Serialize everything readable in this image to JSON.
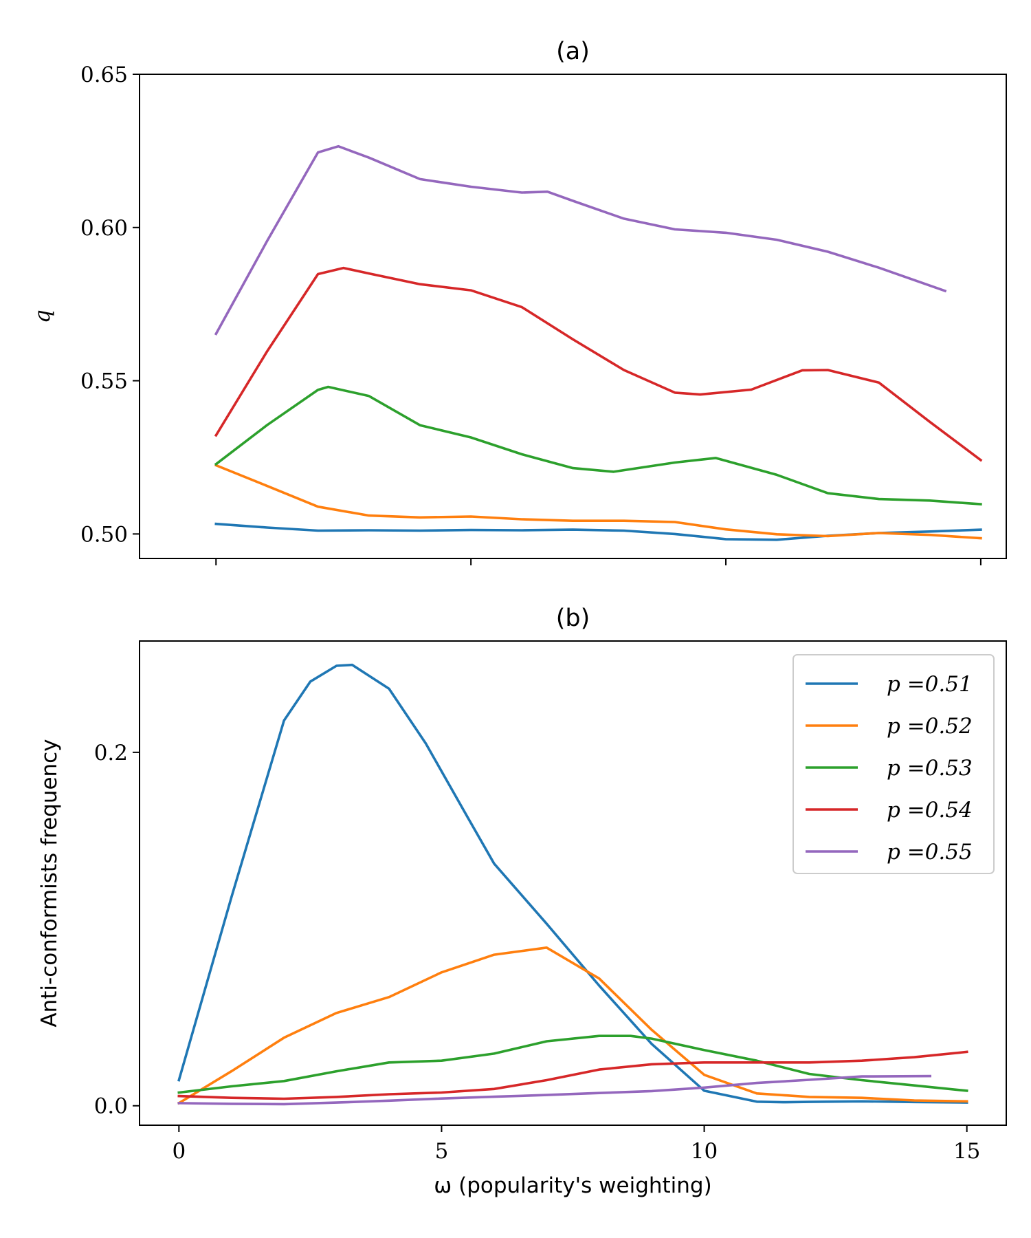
{
  "chart_data": [
    {
      "type": "line",
      "title": "(a)",
      "xlabel": "",
      "ylabel": "q",
      "xlim": [
        -1.5,
        15.5
      ],
      "ylim": [
        0.492,
        0.65
      ],
      "x_ticks": [
        "0",
        "5",
        "10",
        "15"
      ],
      "y_ticks": [
        "0.50",
        "0.55",
        "0.60",
        "0.65"
      ],
      "y_tick_values": [
        0.5,
        0.55,
        0.6,
        0.65
      ],
      "series": [
        {
          "name": "p =0.51",
          "color": "#1f77b4",
          "x": [
            0,
            1,
            2,
            3,
            4,
            5,
            6,
            7,
            8,
            9,
            10,
            11,
            12,
            13,
            14,
            15
          ],
          "values": [
            0.5033,
            0.5021,
            0.5011,
            0.5012,
            0.5011,
            0.5013,
            0.5012,
            0.5014,
            0.5011,
            0.5,
            0.4983,
            0.4981,
            0.4994,
            0.5003,
            0.5008,
            0.5014
          ]
        },
        {
          "name": "p =0.52",
          "color": "#ff7f0e",
          "x": [
            0,
            1,
            2,
            3,
            4,
            5,
            6,
            7,
            8,
            9,
            10,
            11,
            12,
            13,
            14,
            15
          ],
          "values": [
            0.5224,
            0.5157,
            0.5089,
            0.506,
            0.5054,
            0.5057,
            0.5048,
            0.5043,
            0.5043,
            0.5039,
            0.5015,
            0.4999,
            0.4993,
            0.5003,
            0.4997,
            0.4986
          ]
        },
        {
          "name": "p =0.53",
          "color": "#2ca02c",
          "x": [
            0,
            1,
            2,
            2.2,
            3,
            4,
            5,
            6,
            7,
            7.8,
            9,
            9.8,
            11,
            12,
            13,
            14,
            15
          ],
          "values": [
            0.5228,
            0.5355,
            0.547,
            0.548,
            0.545,
            0.5355,
            0.5315,
            0.526,
            0.5215,
            0.5203,
            0.5233,
            0.5248,
            0.5193,
            0.5133,
            0.5114,
            0.5109,
            0.5097
          ]
        },
        {
          "name": "p =0.54",
          "color": "#d62728",
          "x": [
            0,
            1,
            2,
            2.5,
            3,
            4,
            5,
            6,
            7,
            8,
            9,
            9.5,
            10.5,
            11.5,
            12,
            13,
            14,
            15
          ],
          "values": [
            0.5322,
            0.5595,
            0.5848,
            0.5868,
            0.585,
            0.5815,
            0.5795,
            0.574,
            0.5635,
            0.5535,
            0.5461,
            0.5455,
            0.5471,
            0.5534,
            0.5535,
            0.5494,
            0.5366,
            0.5241
          ]
        },
        {
          "name": "p =0.55",
          "color": "#9467bd",
          "x": [
            0,
            1,
            2,
            2.4,
            3,
            4,
            5,
            6,
            6.5,
            7,
            8,
            9,
            10,
            11,
            12,
            13,
            14.3
          ],
          "values": [
            0.5653,
            0.5955,
            0.6245,
            0.6265,
            0.6228,
            0.6158,
            0.6133,
            0.6114,
            0.6117,
            0.6087,
            0.6029,
            0.5994,
            0.5983,
            0.596,
            0.5921,
            0.5869,
            0.5793
          ]
        }
      ]
    },
    {
      "type": "line",
      "title": "(b)",
      "xlabel": "ω (popularity's weighting)",
      "ylabel": "Anti-conformists frequency",
      "xlim": [
        -0.75,
        15.75
      ],
      "ylim": [
        -0.011,
        0.263
      ],
      "x_ticks": [
        "0",
        "5",
        "10",
        "15"
      ],
      "y_ticks": [
        "0.0",
        "0.2"
      ],
      "y_tick_values": [
        0.0,
        0.2
      ],
      "legend": "top-right",
      "series": [
        {
          "name": "p =0.51",
          "color": "#1f77b4",
          "x": [
            0,
            1,
            2,
            2.5,
            3,
            3.3,
            4,
            4.7,
            5.5,
            6,
            7,
            8,
            9,
            10,
            11,
            11.5,
            12,
            13,
            14,
            15
          ],
          "values": [
            0.0145,
            0.118,
            0.218,
            0.24,
            0.249,
            0.2495,
            0.236,
            0.205,
            0.163,
            0.137,
            0.103,
            0.068,
            0.035,
            0.0085,
            0.0023,
            0.002,
            0.0022,
            0.0025,
            0.0021,
            0.0018
          ]
        },
        {
          "name": "p =0.52",
          "color": "#ff7f0e",
          "x": [
            0,
            1,
            2,
            3,
            4,
            5,
            6,
            7,
            8,
            9,
            10,
            11,
            12,
            13,
            14,
            15
          ],
          "values": [
            0.0015,
            0.0195,
            0.0385,
            0.0525,
            0.0615,
            0.0755,
            0.0855,
            0.0895,
            0.072,
            0.043,
            0.0175,
            0.007,
            0.005,
            0.0045,
            0.003,
            0.0025
          ]
        },
        {
          "name": "p =0.53",
          "color": "#2ca02c",
          "x": [
            0,
            1,
            2,
            3,
            4,
            5,
            6,
            7,
            8,
            8.6,
            9,
            10,
            11,
            12,
            13,
            14,
            15
          ],
          "values": [
            0.0075,
            0.011,
            0.014,
            0.0195,
            0.0245,
            0.0255,
            0.0295,
            0.0365,
            0.0395,
            0.0395,
            0.038,
            0.0315,
            0.0255,
            0.018,
            0.0145,
            0.0115,
            0.0085
          ]
        },
        {
          "name": "p =0.54",
          "color": "#d62728",
          "x": [
            0,
            1,
            2,
            3,
            4,
            5,
            6,
            7,
            8,
            9,
            10,
            11,
            12,
            13,
            14,
            15
          ],
          "values": [
            0.0055,
            0.0045,
            0.004,
            0.005,
            0.0065,
            0.0075,
            0.0095,
            0.0145,
            0.0205,
            0.0235,
            0.0245,
            0.0245,
            0.0245,
            0.0255,
            0.0275,
            0.0305
          ]
        },
        {
          "name": "p =0.55",
          "color": "#9467bd",
          "x": [
            0,
            1,
            2,
            3,
            4,
            5,
            6,
            7,
            8,
            9,
            10,
            11,
            12,
            13,
            14.3
          ],
          "values": [
            0.0015,
            0.0011,
            0.0009,
            0.0018,
            0.0029,
            0.0041,
            0.0051,
            0.0061,
            0.0072,
            0.0083,
            0.0103,
            0.0129,
            0.0147,
            0.0166,
            0.0168
          ]
        }
      ]
    }
  ]
}
